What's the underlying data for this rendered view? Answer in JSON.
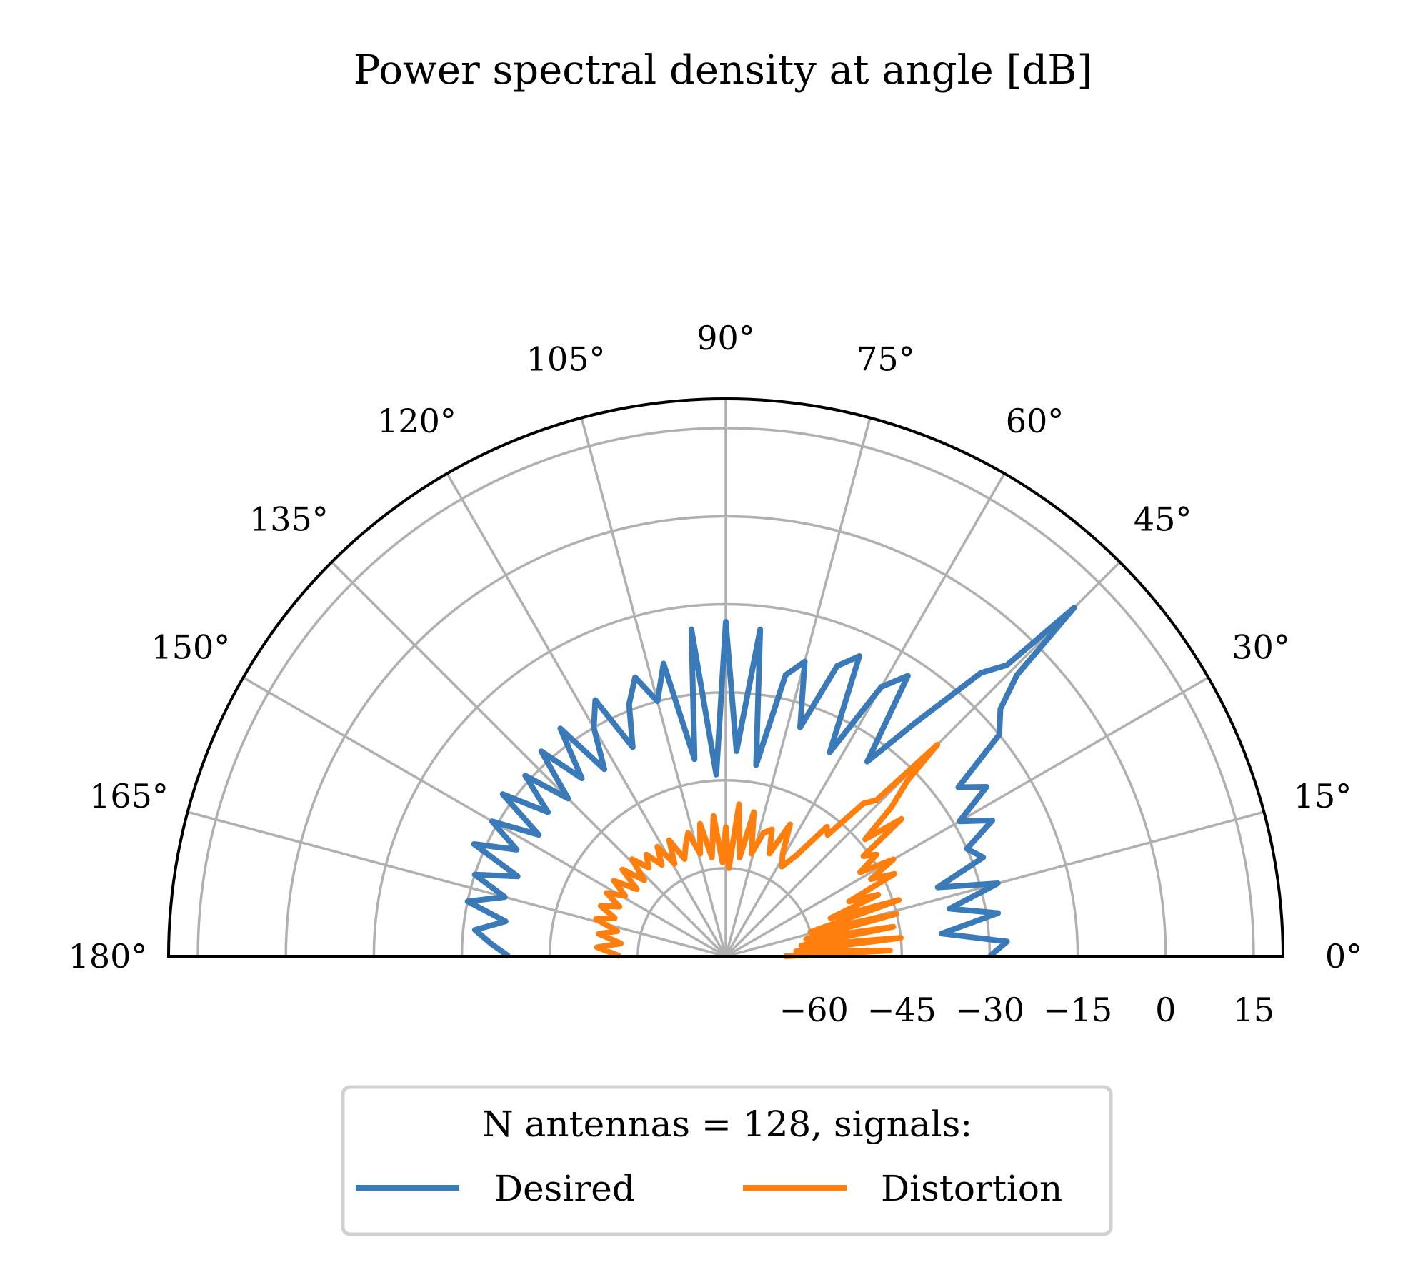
{
  "chart_data": {
    "type": "polar-line",
    "title": "Power spectral density at angle [dB]",
    "theta_range_deg": [
      0,
      180
    ],
    "theta_ticks": [
      "0°",
      "15°",
      "30°",
      "45°",
      "60°",
      "75°",
      "90°",
      "105°",
      "120°",
      "135°",
      "150°",
      "165°",
      "180°"
    ],
    "r_range_db": [
      -75,
      20
    ],
    "r_ticks": [
      -60,
      -45,
      -30,
      -15,
      0,
      15
    ],
    "r_tick_labels": [
      "−60",
      "−45",
      "−30",
      "−15",
      "0",
      "15"
    ],
    "grid": true,
    "legend": {
      "title": "N antennas = 128, signals:",
      "placement": "bottom-center"
    },
    "series": [
      {
        "name": "Desired",
        "color": "#3a7ab8",
        "angle_deg": [
          0,
          3,
          6,
          9,
          12,
          15,
          18,
          21,
          24,
          27,
          30,
          33,
          36,
          39,
          42,
          44,
          45,
          46,
          48,
          51,
          54,
          57,
          60,
          63,
          66,
          69,
          72,
          75,
          78,
          81,
          84,
          87,
          90,
          93,
          96,
          99,
          102,
          105,
          108,
          111,
          114,
          117,
          120,
          123,
          126,
          129,
          132,
          135,
          138,
          141,
          144,
          147,
          150,
          153,
          156,
          159,
          162,
          165,
          168,
          171,
          174,
          177,
          180
        ],
        "db": [
          -30,
          -27,
          -38,
          -28,
          -36,
          -27,
          -37,
          -28,
          -30,
          -24,
          -29,
          -22,
          -26,
          -15,
          -12,
          -6,
          9,
          -6,
          -10,
          -24,
          -34,
          -18,
          -22,
          -36,
          -19,
          -22,
          -34,
          -23,
          -26,
          -42,
          -19,
          -40,
          -18,
          -44,
          -19,
          -41,
          -24,
          -30,
          -25,
          -29,
          -36,
          -26,
          -30,
          -37,
          -27,
          -36,
          -28,
          -37,
          -29,
          -36,
          -28,
          -37,
          -29,
          -35,
          -28,
          -37,
          -30,
          -36,
          -30,
          -37,
          -32,
          -35,
          -38
        ]
      },
      {
        "name": "Distortion",
        "color": "#ff7f0e",
        "angle_deg": [
          0,
          2,
          4,
          6,
          8,
          10,
          12,
          14,
          16,
          18,
          20,
          22,
          24,
          26,
          28,
          30,
          32,
          34,
          36,
          38,
          40,
          42,
          44,
          45,
          46,
          48,
          50,
          52,
          55,
          58,
          61,
          64,
          67,
          70,
          73,
          76,
          79,
          82,
          85,
          88,
          90,
          92,
          95,
          98,
          101,
          104,
          107,
          110,
          113,
          116,
          119,
          122,
          125,
          128,
          131,
          134,
          137,
          140,
          143,
          146,
          149,
          152,
          155,
          158,
          161,
          164,
          167,
          170,
          173,
          176,
          180
        ],
        "db": [
          -65,
          -47,
          -63,
          -45,
          -62,
          -46,
          -61,
          -45,
          -60,
          -44,
          -56,
          -47,
          -52,
          -43,
          -47,
          -42,
          -48,
          -44,
          -46,
          -37,
          -44,
          -37,
          -32,
          -24,
          -38,
          -40,
          -48,
          -47,
          -54,
          -57,
          -55,
          -50,
          -56,
          -52,
          -53,
          -57,
          -50,
          -58,
          -49,
          -60,
          -53,
          -59,
          -51,
          -58,
          -52,
          -57,
          -53,
          -55,
          -57,
          -53,
          -57,
          -53,
          -56,
          -53,
          -55,
          -52,
          -56,
          -52,
          -56,
          -52,
          -55,
          -52,
          -55,
          -52,
          -55,
          -52,
          -56,
          -53,
          -57,
          -53,
          -57
        ]
      }
    ]
  }
}
